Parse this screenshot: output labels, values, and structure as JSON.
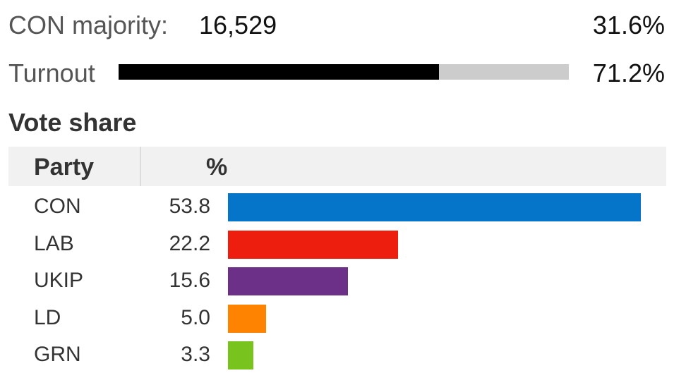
{
  "majority": {
    "label": "CON majority:",
    "value": "16,529",
    "percent": "31.6%"
  },
  "turnout": {
    "label": "Turnout",
    "percent": "71.2%",
    "value": 71.2
  },
  "vote_share": {
    "heading": "Vote share",
    "col_party": "Party",
    "col_percent": "%"
  },
  "chart_data": {
    "type": "bar",
    "orientation": "horizontal",
    "title": "Vote share",
    "categories": [
      "CON",
      "LAB",
      "UKIP",
      "LD",
      "GRN"
    ],
    "values": [
      53.8,
      22.2,
      15.6,
      5.0,
      3.3
    ],
    "value_labels": [
      "53.8",
      "22.2",
      "15.6",
      "5.0",
      "3.3"
    ],
    "colors": [
      "#0575c9",
      "#ed1e0e",
      "#6d3088",
      "#fe8300",
      "#78c31e"
    ],
    "xlim": [
      0,
      53.8
    ],
    "grid": false
  }
}
